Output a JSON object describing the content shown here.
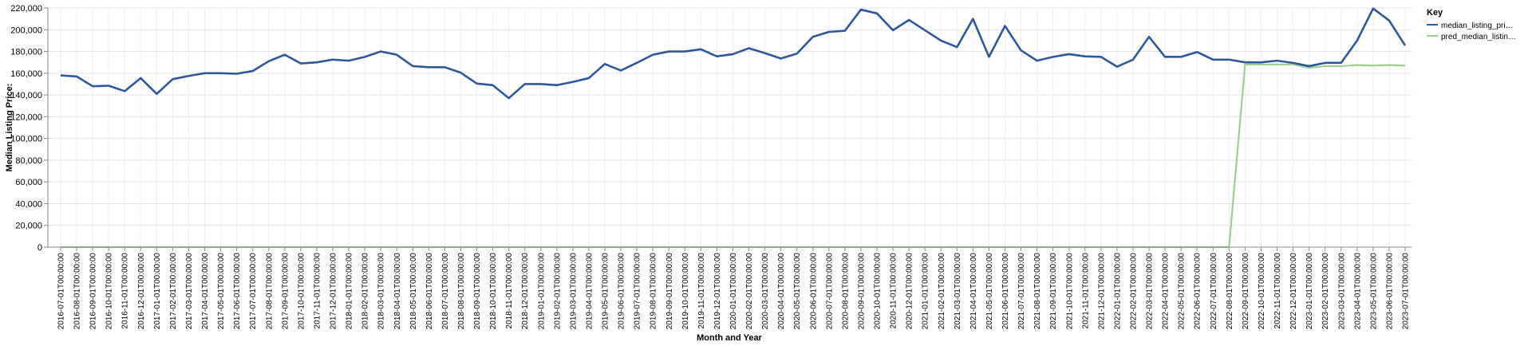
{
  "chart_data": {
    "type": "line",
    "xlabel": "Month and Year",
    "ylabel": "Median Listing Price:",
    "ylim": [
      0,
      220000
    ],
    "y_ticks": [
      "0",
      "20,000",
      "40,000",
      "60,000",
      "80,000",
      "100,000",
      "120,000",
      "140,000",
      "160,000",
      "180,000",
      "200,000",
      "220,000"
    ],
    "grid": true,
    "legend_position": "top-right",
    "legend_title": "Key",
    "x": [
      "2016-07-01T00:00:00",
      "2016-08-01T00:00:00",
      "2016-09-01T00:00:00",
      "2016-10-01T00:00:00",
      "2016-11-01T00:00:00",
      "2016-12-01T00:00:00",
      "2017-01-01T00:00:00",
      "2017-02-01T00:00:00",
      "2017-03-01T00:00:00",
      "2017-04-01T00:00:00",
      "2017-05-01T00:00:00",
      "2017-06-01T00:00:00",
      "2017-07-01T00:00:00",
      "2017-08-01T00:00:00",
      "2017-09-01T00:00:00",
      "2017-10-01T00:00:00",
      "2017-11-01T00:00:00",
      "2017-12-01T00:00:00",
      "2018-01-01T00:00:00",
      "2018-02-01T00:00:00",
      "2018-03-01T00:00:00",
      "2018-04-01T00:00:00",
      "2018-05-01T00:00:00",
      "2018-06-01T00:00:00",
      "2018-07-01T00:00:00",
      "2018-08-01T00:00:00",
      "2018-09-01T00:00:00",
      "2018-10-01T00:00:00",
      "2018-11-01T00:00:00",
      "2018-12-01T00:00:00",
      "2019-01-01T00:00:00",
      "2019-02-01T00:00:00",
      "2019-03-01T00:00:00",
      "2019-04-01T00:00:00",
      "2019-05-01T00:00:00",
      "2019-06-01T00:00:00",
      "2019-07-01T00:00:00",
      "2019-08-01T00:00:00",
      "2019-09-01T00:00:00",
      "2019-10-01T00:00:00",
      "2019-11-01T00:00:00",
      "2019-12-01T00:00:00",
      "2020-01-01T00:00:00",
      "2020-02-01T00:00:00",
      "2020-03-01T00:00:00",
      "2020-04-01T00:00:00",
      "2020-05-01T00:00:00",
      "2020-06-01T00:00:00",
      "2020-07-01T00:00:00",
      "2020-08-01T00:00:00",
      "2020-09-01T00:00:00",
      "2020-10-01T00:00:00",
      "2020-11-01T00:00:00",
      "2020-12-01T00:00:00",
      "2021-01-01T00:00:00",
      "2021-02-01T00:00:00",
      "2021-03-01T00:00:00",
      "2021-04-01T00:00:00",
      "2021-05-01T00:00:00",
      "2021-06-01T00:00:00",
      "2021-07-01T00:00:00",
      "2021-08-01T00:00:00",
      "2021-09-01T00:00:00",
      "2021-10-01T00:00:00",
      "2021-11-01T00:00:00",
      "2021-12-01T00:00:00",
      "2022-01-01T00:00:00",
      "2022-02-01T00:00:00",
      "2022-03-01T00:00:00",
      "2022-04-01T00:00:00",
      "2022-05-01T00:00:00",
      "2022-06-01T00:00:00",
      "2022-07-01T00:00:00",
      "2022-08-01T00:00:00",
      "2022-09-01T00:00:00",
      "2022-10-01T00:00:00",
      "2022-11-01T00:00:00",
      "2022-12-01T00:00:00",
      "2023-01-01T00:00:00",
      "2023-02-01T00:00:00",
      "2023-03-01T00:00:00",
      "2023-04-01T00:00:00",
      "2023-05-01T00:00:00",
      "2023-06-01T00:00:00",
      "2023-07-01T00:00:00"
    ],
    "series": [
      {
        "name": "median_listing_pri…",
        "color": "#2c58a0",
        "values": [
          158000,
          157000,
          148000,
          148500,
          143500,
          155500,
          141000,
          154500,
          157500,
          160000,
          160000,
          159500,
          162000,
          171000,
          177000,
          169000,
          170000,
          172500,
          171500,
          175000,
          180000,
          177000,
          166500,
          165500,
          165500,
          160500,
          150500,
          149000,
          137000,
          150000,
          150000,
          149000,
          152000,
          155500,
          168500,
          162500,
          169500,
          177000,
          180000,
          180000,
          182000,
          175500,
          177500,
          183000,
          178500,
          173500,
          178000,
          193500,
          198000,
          199000,
          218500,
          215000,
          199500,
          209000,
          199500,
          190000,
          184000,
          210000,
          175000,
          203500,
          181000,
          171500,
          175000,
          177500,
          175500,
          175000,
          166000,
          172500,
          193500,
          175000,
          175000,
          179500,
          172500,
          172500,
          170000,
          170000,
          171500,
          169500,
          166500,
          169500,
          169500,
          190000,
          219500,
          208500,
          185500
        ]
      },
      {
        "name": "pred_median_listin…",
        "color": "#9ad18e",
        "values": [
          0,
          0,
          0,
          0,
          0,
          0,
          0,
          0,
          0,
          0,
          0,
          0,
          0,
          0,
          0,
          0,
          0,
          0,
          0,
          0,
          0,
          0,
          0,
          0,
          0,
          0,
          0,
          0,
          0,
          0,
          0,
          0,
          0,
          0,
          0,
          0,
          0,
          0,
          0,
          0,
          0,
          0,
          0,
          0,
          0,
          0,
          0,
          0,
          0,
          0,
          0,
          0,
          0,
          0,
          0,
          0,
          0,
          0,
          0,
          0,
          0,
          0,
          0,
          0,
          0,
          0,
          0,
          0,
          0,
          0,
          0,
          0,
          0,
          0,
          168000,
          168000,
          168000,
          168000,
          165000,
          166500,
          166500,
          167500,
          167000,
          167500,
          167000
        ]
      }
    ]
  }
}
